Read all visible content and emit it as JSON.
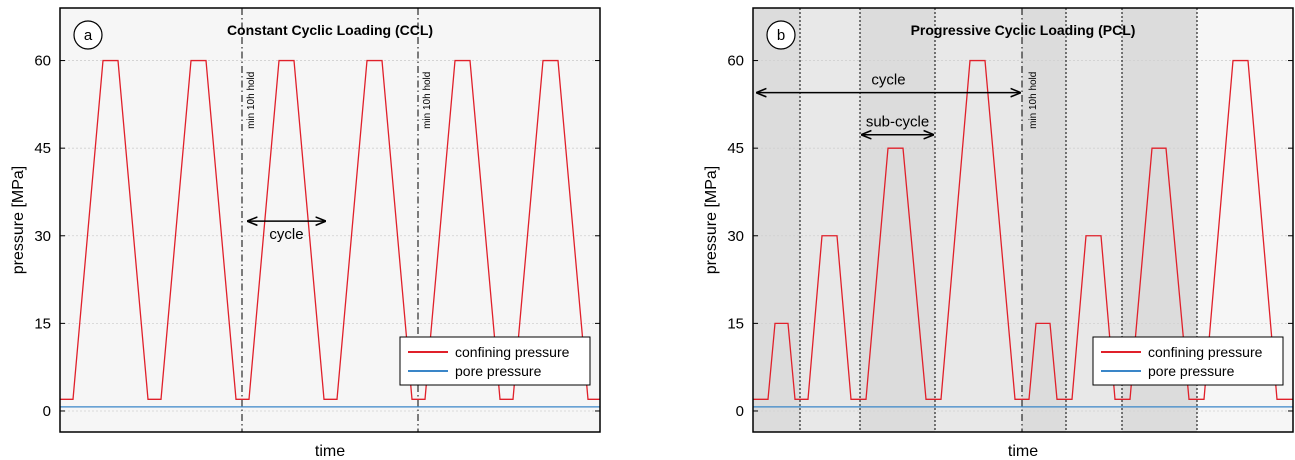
{
  "chart_data": [
    {
      "type": "line",
      "panel": "a",
      "title": "Constant Cyclic Loading (CCL)",
      "xlabel": "time",
      "ylabel": "pressure [MPa]",
      "xlim": [
        0,
        540
      ],
      "ylim": [
        -3.6,
        69
      ],
      "yticks": [
        0,
        15,
        30,
        45,
        60
      ],
      "grid": true,
      "legend": "lower right",
      "series": [
        {
          "name": "confining pressure",
          "color": "#e0202a",
          "x": [
            0,
            13,
            43,
            58,
            88,
            101,
            131,
            146,
            176,
            189,
            219,
            234,
            264,
            277,
            307,
            322,
            352,
            365,
            395,
            410,
            440,
            453,
            483,
            498,
            528,
            540
          ],
          "values": [
            2,
            2,
            60,
            60,
            2,
            2,
            60,
            60,
            2,
            2,
            60,
            60,
            2,
            2,
            60,
            60,
            2,
            2,
            60,
            60,
            2,
            2,
            60,
            60,
            2,
            2
          ]
        },
        {
          "name": "pore pressure",
          "color": "#3a86c8",
          "x": [
            0,
            540
          ],
          "values": [
            0.7,
            0.7
          ]
        }
      ],
      "vlines": [
        {
          "x": 182,
          "style": "dashdot"
        },
        {
          "x": 358,
          "style": "dashdot"
        }
      ],
      "bands": [],
      "annotations": [
        {
          "text": "min 10h hold",
          "x": 194,
          "y": 53.2
        },
        {
          "text": "min 10h hold",
          "x": 370,
          "y": 53.2
        }
      ],
      "arrows": [
        {
          "text": "cycle",
          "x": [
            188,
            265
          ],
          "y": 32.5
        }
      ]
    },
    {
      "type": "line",
      "panel": "b",
      "title": "Progressive Cyclic Loading (PCL)",
      "xlabel": "time",
      "ylabel": "pressure [MPa]",
      "xlim": [
        0,
        540
      ],
      "ylim": [
        -3.6,
        69
      ],
      "yticks": [
        0,
        15,
        30,
        45,
        60
      ],
      "grid": true,
      "legend": "lower right",
      "series": [
        {
          "name": "confining pressure",
          "color": "#e0202a",
          "x": [
            0,
            15,
            22,
            35,
            42,
            55,
            69,
            84,
            98,
            113,
            135,
            150,
            173,
            188,
            217,
            232,
            262,
            276,
            283,
            297,
            304,
            319,
            333,
            348,
            362,
            377,
            399,
            413,
            436,
            451,
            480,
            495,
            524,
            540
          ],
          "values": [
            2,
            2,
            15,
            15,
            2,
            2,
            30,
            30,
            2,
            2,
            45,
            45,
            2,
            2,
            60,
            60,
            2,
            2,
            15,
            15,
            2,
            2,
            30,
            30,
            2,
            2,
            45,
            45,
            2,
            2,
            60,
            60,
            2,
            2
          ]
        },
        {
          "name": "pore pressure",
          "color": "#3a86c8",
          "x": [
            0,
            540
          ],
          "values": [
            0.7,
            0.7
          ]
        }
      ],
      "vlines": [
        {
          "x": 47,
          "style": "dotted"
        },
        {
          "x": 107,
          "style": "dotted"
        },
        {
          "x": 182,
          "style": "dotted"
        },
        {
          "x": 269,
          "style": "dashdot"
        },
        {
          "x": 313,
          "style": "dotted"
        },
        {
          "x": 369,
          "style": "dotted"
        },
        {
          "x": 444,
          "style": "dotted"
        }
      ],
      "bands": [
        {
          "x": [
            0,
            47
          ],
          "color": "#dcdcdc"
        },
        {
          "x": [
            47,
            107
          ],
          "color": "#e8e8e8"
        },
        {
          "x": [
            107,
            182
          ],
          "color": "#dcdcdc"
        },
        {
          "x": [
            182,
            269
          ],
          "color": "#e8e8e8"
        },
        {
          "x": [
            269,
            313
          ],
          "color": "#dcdcdc"
        },
        {
          "x": [
            313,
            369
          ],
          "color": "#e8e8e8"
        },
        {
          "x": [
            369,
            444
          ],
          "color": "#dcdcdc"
        }
      ],
      "annotations": [
        {
          "text": "min 10h hold",
          "x": 283,
          "y": 53.2
        }
      ],
      "arrows": [
        {
          "text": "cycle",
          "x": [
            4,
            267
          ],
          "y": 54.5
        },
        {
          "text": "sub-cycle",
          "x": [
            109,
            180
          ],
          "y": 47.3
        }
      ]
    }
  ]
}
